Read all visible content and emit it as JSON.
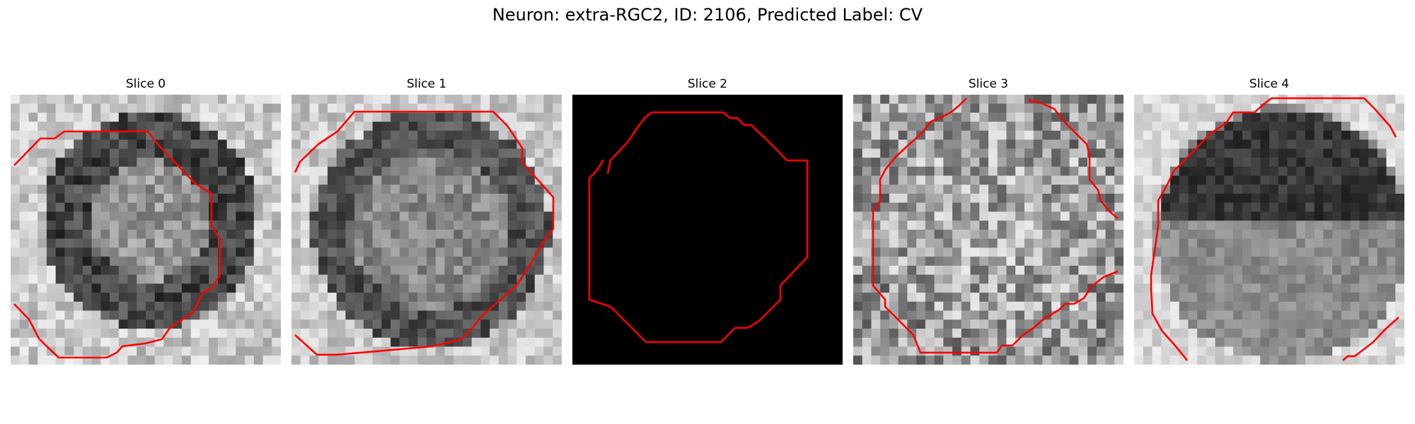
{
  "figure": {
    "title": "Neuron: extra-RGC2, ID: 2106, Predicted Label: CV",
    "contour_color": "#ff0000",
    "background_color": "#ffffff"
  },
  "panels": [
    {
      "label": "Slice 0",
      "style": "grayscale-noise"
    },
    {
      "label": "Slice 1",
      "style": "grayscale-noise"
    },
    {
      "label": "Slice 2",
      "style": "solid-black"
    },
    {
      "label": "Slice 3",
      "style": "grayscale-noise"
    },
    {
      "label": "Slice 4",
      "style": "grayscale-noise"
    }
  ]
}
